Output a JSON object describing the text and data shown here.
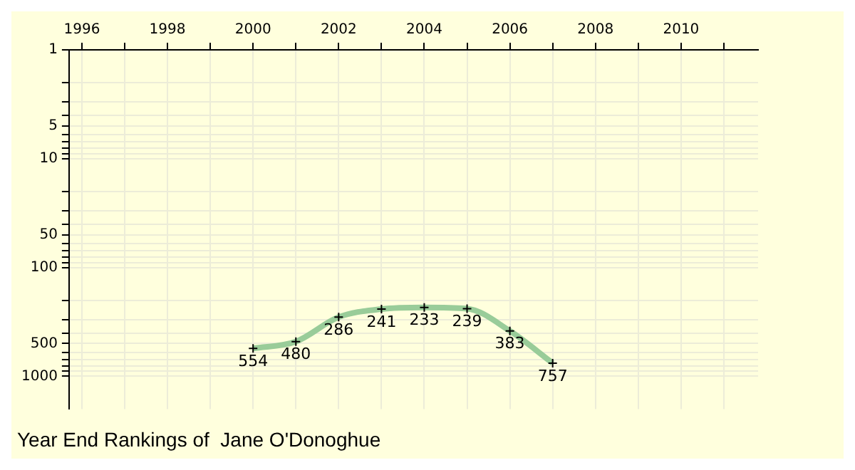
{
  "chart_data": {
    "type": "line",
    "title": "Year End Rankings of  Jane O'Donoghue",
    "x": [
      2000,
      2001,
      2002,
      2003,
      2004,
      2005,
      2006,
      2007
    ],
    "series": [
      {
        "color": "#99cc99",
        "values": [
          554,
          480,
          286,
          241,
          233,
          239,
          383,
          757
        ]
      }
    ],
    "xlim": [
      1995.7,
      2011.8
    ],
    "xticks": [
      1996,
      {
        "value": 1997,
        "label": null
      },
      1998,
      {
        "value": 1999,
        "label": null
      },
      2000,
      {
        "value": 2001,
        "label": null
      },
      2002,
      {
        "value": 2003,
        "label": null
      },
      2004,
      {
        "value": 2005,
        "label": null
      },
      2006,
      {
        "value": 2007,
        "label": null
      },
      2008,
      {
        "value": 2009,
        "label": null
      },
      2010,
      {
        "value": 2011,
        "label": null
      }
    ],
    "ylim": [
      2000,
      1
    ],
    "yticks": [
      1,
      {
        "value": 2,
        "label": null
      },
      {
        "value": 3,
        "label": null
      },
      {
        "value": 4,
        "label": null
      },
      5,
      {
        "value": 6,
        "label": null
      },
      {
        "value": 7,
        "label": null
      },
      {
        "value": 8,
        "label": null
      },
      {
        "value": 9,
        "label": null
      },
      10,
      {
        "value": 20,
        "label": null
      },
      {
        "value": 30,
        "label": null
      },
      {
        "value": 40,
        "label": null
      },
      50,
      {
        "value": 60,
        "label": null
      },
      {
        "value": 70,
        "label": null
      },
      {
        "value": 80,
        "label": null
      },
      {
        "value": 90,
        "label": null
      },
      100,
      {
        "value": 200,
        "label": null
      },
      {
        "value": 300,
        "label": null
      },
      {
        "value": 400,
        "label": null
      },
      500,
      {
        "value": 600,
        "label": null
      },
      {
        "value": 700,
        "label": null
      },
      {
        "value": 800,
        "label": null
      },
      {
        "value": 900,
        "label": null
      },
      1000
    ],
    "log": "y",
    "grid": true,
    "marker": "cross",
    "line_style": "solid",
    "data_labels": true
  }
}
